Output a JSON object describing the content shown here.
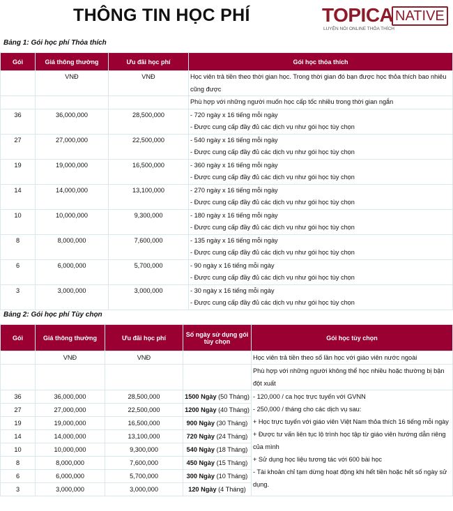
{
  "title": "THÔNG TIN HỌC PHÍ",
  "logo": {
    "brand": "TOPICA",
    "native": "NATIVE",
    "tagline": "LUYỆN NÓI ONLINE THỎA THÍCH",
    "color": "#8e1a2a"
  },
  "header_color": "#9b0033",
  "table1": {
    "caption": "Bảng 1: Gói học phí Thỏa thích",
    "headers": [
      "Gói",
      "Giá thông thường",
      "Ưu đãi học phí",
      "Gói học thỏa thích"
    ],
    "unit_row": {
      "price": "VNĐ",
      "discount": "VNĐ",
      "desc": "Học viên trả tiền theo thời gian học. Trong thời gian đó bạn được học thỏa thích bao nhiêu cũng được"
    },
    "suit_row": "Phù hợp với những người muốn học cấp tốc nhiều trong thời gian ngắn",
    "rows": [
      {
        "pkg": "36",
        "price": "36,000,000",
        "discount": "28,500,000",
        "line1": "- 720 ngày x 16 tiếng mỗi ngày",
        "line2": "- Được cung cấp đầy đủ các dịch vụ như gói học tùy chọn"
      },
      {
        "pkg": "27",
        "price": "27,000,000",
        "discount": "22,500,000",
        "line1": "- 540 ngày x 16 tiếng mỗi ngày",
        "line2": "- Được cung cấp đầy đủ các dịch vụ như gói học tùy chọn"
      },
      {
        "pkg": "19",
        "price": "19,000,000",
        "discount": "16,500,000",
        "line1": "- 360 ngày x 16 tiếng mỗi ngày",
        "line2": "- Được cung cấp đầy đủ các dịch vụ như gói học tùy chọn"
      },
      {
        "pkg": "14",
        "price": "14,000,000",
        "discount": "13,100,000",
        "line1": "- 270 ngày x 16 tiếng mỗi ngày",
        "line2": "- Được cung cấp đầy đủ các dịch vụ như gói học tùy chọn"
      },
      {
        "pkg": "10",
        "price": "10,000,000",
        "discount": "9,300,000",
        "line1": "- 180 ngày x 16 tiếng mỗi ngày",
        "line2": "- Được cung cấp đầy đủ các dịch vụ như gói học tùy chọn"
      },
      {
        "pkg": "8",
        "price": "8,000,000",
        "discount": "7,600,000",
        "line1": "- 135 ngày x 16 tiếng mỗi ngày",
        "line2": "- Được cung cấp đầy đủ các dịch vụ như gói học tùy chọn"
      },
      {
        "pkg": "6",
        "price": "6,000,000",
        "discount": "5,700,000",
        "line1": "- 90 ngày x 16 tiếng mỗi ngày",
        "line2": "- Được cung cấp đầy đủ các dịch vụ như gói học tùy chọn"
      },
      {
        "pkg": "3",
        "price": "3,000,000",
        "discount": "3,000,000",
        "line1": "- 30 ngày x 16 tiếng mỗi ngày",
        "line2": "- Được cung cấp đầy đủ các dịch vụ như gói học tùy chọn"
      }
    ]
  },
  "table2": {
    "caption": "Bảng 2: Gói học phí Tùy chọn",
    "headers": [
      "Gói",
      "Giá thông thường",
      "Ưu đãi học phí",
      "Số ngày sử dụng gói tùy chọn",
      "Gói học tùy chọn"
    ],
    "unit_row": {
      "price": "VNĐ",
      "discount": "VNĐ",
      "desc": "Học viên trả tiền theo số lần học với giáo viên nước ngoài"
    },
    "suit_row": "Phù hợp với những người không thể học nhiều hoặc thường bị bận đột xuất",
    "rows": [
      {
        "pkg": "36",
        "price": "36,000,000",
        "discount": "28,500,000",
        "days": "1500 Ngày",
        "months": "(50 Tháng)"
      },
      {
        "pkg": "27",
        "price": "27,000,000",
        "discount": "22,500,000",
        "days": "1200 Ngày",
        "months": "(40 Tháng)"
      },
      {
        "pkg": "19",
        "price": "19,000,000",
        "discount": "16,500,000",
        "days": "900 Ngày",
        "months": "(30 Tháng)"
      },
      {
        "pkg": "14",
        "price": "14,000,000",
        "discount": "13,100,000",
        "days": "720 Ngày",
        "months": "(24 Tháng)"
      },
      {
        "pkg": "10",
        "price": "10,000,000",
        "discount": "9,300,000",
        "days": "540 Ngày",
        "months": "(18 Tháng)"
      },
      {
        "pkg": "8",
        "price": "8,000,000",
        "discount": "7,600,000",
        "days": "450 Ngày",
        "months": "(15 Tháng)"
      },
      {
        "pkg": "6",
        "price": "6,000,000",
        "discount": "5,700,000",
        "days": "300 Ngày",
        "months": "(10 Tháng)"
      },
      {
        "pkg": "3",
        "price": "3,000,000",
        "discount": "3,000,000",
        "days": "120 Ngày",
        "months": "(4 Tháng)"
      }
    ],
    "details": [
      "- 120,000 / ca học trực tuyến với GVNN",
      "- 250,000 / tháng cho các dịch vụ sau:",
      "+ Học trực tuyến với giáo viên Việt Nam thỏa thích 16 tiếng mỗi ngày",
      "+ Được tư vấn liên tục lộ trình học tập từ giáo viên hướng dẫn riêng của mình",
      "+ Sử dụng học liệu tương tác với 600 bài học",
      "- Tài khoản chỉ tạm dừng hoạt động khi hết tiền hoặc hết số ngày sử dụng."
    ]
  }
}
